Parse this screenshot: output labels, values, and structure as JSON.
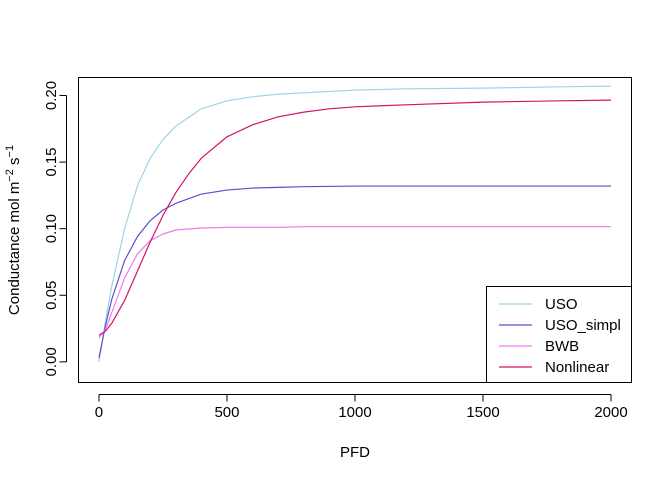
{
  "chart_data": {
    "type": "line",
    "xlabel": "PFD",
    "ylabel": {
      "base": "Conductance mol m",
      "sup1": "−2",
      "mid": " s",
      "sup2": "−1"
    },
    "xlim": [
      -80,
      2080
    ],
    "ylim": [
      -0.0155,
      0.2135
    ],
    "xticks": [
      "0",
      "500",
      "1000",
      "1500",
      "2000"
    ],
    "xtick_values": [
      0,
      500,
      1000,
      1500,
      2000
    ],
    "yticks": [
      "0.00",
      "0.05",
      "0.10",
      "0.15",
      "0.20"
    ],
    "ytick_values": [
      0,
      0.05,
      0.1,
      0.15,
      0.2
    ],
    "grid": false,
    "legend_position": "bottom-right",
    "series": [
      {
        "name": "USO",
        "color": "#9fd4e4",
        "x": [
          0,
          25,
          50,
          100,
          150,
          200,
          250,
          300,
          400,
          500,
          600,
          700,
          800,
          1000,
          1200,
          1500,
          1800,
          2000
        ],
        "values": [
          0.0,
          0.03,
          0.057,
          0.1,
          0.132,
          0.153,
          0.167,
          0.177,
          0.19,
          0.196,
          0.199,
          0.201,
          0.202,
          0.204,
          0.205,
          0.2055,
          0.2065,
          0.207
        ]
      },
      {
        "name": "USO_simpl",
        "color": "#5b4fd0",
        "x": [
          0,
          25,
          50,
          100,
          150,
          200,
          250,
          300,
          400,
          500,
          600,
          700,
          800,
          1000,
          1500,
          2000
        ],
        "values": [
          0.003,
          0.027,
          0.047,
          0.076,
          0.094,
          0.106,
          0.114,
          0.119,
          0.126,
          0.129,
          0.1305,
          0.131,
          0.1315,
          0.132,
          0.132,
          0.132
        ]
      },
      {
        "name": "BWB",
        "color": "#f07af0",
        "x": [
          0,
          25,
          50,
          100,
          150,
          200,
          250,
          300,
          400,
          500,
          600,
          700,
          800,
          1000,
          1500,
          2000
        ],
        "values": [
          0.018,
          0.024,
          0.037,
          0.063,
          0.081,
          0.091,
          0.096,
          0.099,
          0.1005,
          0.101,
          0.101,
          0.101,
          0.1015,
          0.1015,
          0.1015,
          0.1015
        ]
      },
      {
        "name": "Nonlinear",
        "color": "#d3126e",
        "x": [
          0,
          25,
          50,
          100,
          150,
          200,
          250,
          300,
          350,
          400,
          500,
          600,
          700,
          800,
          900,
          1000,
          1200,
          1500,
          1800,
          2000
        ],
        "values": [
          0.02,
          0.023,
          0.029,
          0.046,
          0.068,
          0.09,
          0.11,
          0.127,
          0.141,
          0.153,
          0.169,
          0.178,
          0.184,
          0.1875,
          0.19,
          0.1915,
          0.193,
          0.195,
          0.196,
          0.1965
        ]
      }
    ]
  }
}
